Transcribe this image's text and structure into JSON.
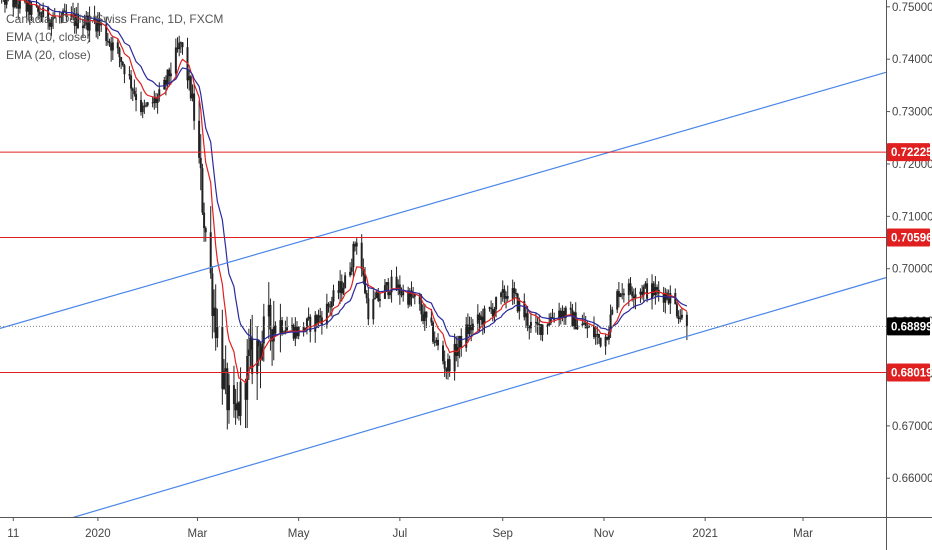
{
  "chart_data": {
    "type": "candlestick",
    "title": "Canadian Dollar/Swiss Franc, 1D, FXCM",
    "indicators": [
      "EMA (10, close)",
      "EMA (20, close)"
    ],
    "x_tick_labels": [
      "11",
      "2020",
      "Mar",
      "May",
      "Jul",
      "Sep",
      "Nov",
      "2021",
      "Mar"
    ],
    "y_ticks": [
      0.66,
      0.67,
      0.68,
      0.69,
      0.7,
      0.71,
      0.72,
      0.73,
      0.74,
      0.75
    ],
    "y_tick_labels": [
      "0.66000",
      "0.67000",
      "0.68000",
      "0.69000",
      "0.70000",
      "0.71000",
      "0.72000",
      "0.73000",
      "0.74000",
      "0.75000"
    ],
    "ylim": [
      0.6526,
      0.7513
    ],
    "x_range": [
      "2019-11-03",
      "2021-04-20"
    ],
    "grid": false,
    "horizontal_levels": [
      {
        "value": 0.72225,
        "label": "0.72225"
      },
      {
        "value": 0.70596,
        "label": "0.70596"
      },
      {
        "value": 0.68019,
        "label": "0.68019"
      }
    ],
    "current_price": {
      "value": 0.68899,
      "label": "0.68899"
    },
    "trend_lines": [
      {
        "from": {
          "x": "2019-11-03",
          "y": 0.6886
        },
        "to": {
          "x": "2021-04-20",
          "y": 0.7375
        }
      },
      {
        "from": {
          "x": "2019-11-03",
          "y": 0.6484
        },
        "to": {
          "x": "2021-04-20",
          "y": 0.6983
        }
      }
    ],
    "price_path": [
      [
        "2019-11-03",
        0.752
      ],
      [
        "2019-12-01",
        0.748
      ],
      [
        "2020-01-01",
        0.747
      ],
      [
        "2020-01-15",
        0.74
      ],
      [
        "2020-01-28",
        0.73
      ],
      [
        "2020-02-08",
        0.733
      ],
      [
        "2020-02-20",
        0.743
      ],
      [
        "2020-02-27",
        0.732
      ],
      [
        "2020-03-05",
        0.71
      ],
      [
        "2020-03-10",
        0.695
      ],
      [
        "2020-03-17",
        0.678
      ],
      [
        "2020-03-23",
        0.67
      ],
      [
        "2020-04-01",
        0.682
      ],
      [
        "2020-04-15",
        0.69
      ],
      [
        "2020-05-01",
        0.688
      ],
      [
        "2020-05-15",
        0.691
      ],
      [
        "2020-05-30",
        0.698
      ],
      [
        "2020-06-05",
        0.706
      ],
      [
        "2020-06-12",
        0.692
      ],
      [
        "2020-06-25",
        0.697
      ],
      [
        "2020-07-10",
        0.694
      ],
      [
        "2020-07-20",
        0.688
      ],
      [
        "2020-07-29",
        0.681
      ],
      [
        "2020-08-10",
        0.688
      ],
      [
        "2020-08-25",
        0.692
      ],
      [
        "2020-09-05",
        0.696
      ],
      [
        "2020-09-20",
        0.688
      ],
      [
        "2020-10-05",
        0.692
      ],
      [
        "2020-10-20",
        0.689
      ],
      [
        "2020-11-01",
        0.686
      ],
      [
        "2020-11-10",
        0.696
      ],
      [
        "2020-11-25",
        0.696
      ],
      [
        "2020-12-10",
        0.695
      ],
      [
        "2020-12-21",
        0.689
      ]
    ]
  }
}
